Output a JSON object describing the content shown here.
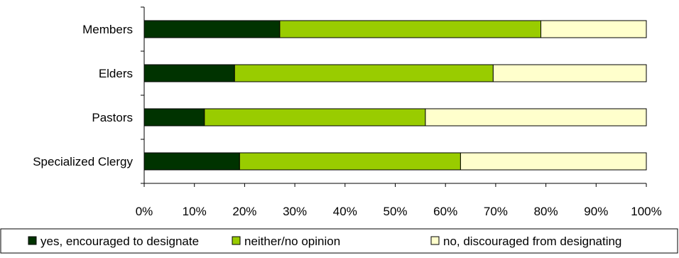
{
  "chart_data": {
    "type": "bar",
    "orientation": "horizontal",
    "stacked": "percent",
    "categories": [
      "Members",
      "Elders",
      "Pastors",
      "Specialized Clergy"
    ],
    "series": [
      {
        "name": "yes, encouraged to designate",
        "color": "#003300",
        "values": [
          27,
          18,
          12,
          19
        ]
      },
      {
        "name": "neither/no opinion",
        "color": "#99cc00",
        "values": [
          52,
          51.5,
          44,
          44
        ]
      },
      {
        "name": "no, discouraged from designating",
        "color": "#ffffcc",
        "values": [
          21,
          30.5,
          44,
          37
        ]
      }
    ],
    "xlim": [
      0,
      100
    ],
    "xticks": [
      "0%",
      "10%",
      "20%",
      "30%",
      "40%",
      "50%",
      "60%",
      "70%",
      "80%",
      "90%",
      "100%"
    ],
    "grid": false,
    "legend": "bottom"
  }
}
